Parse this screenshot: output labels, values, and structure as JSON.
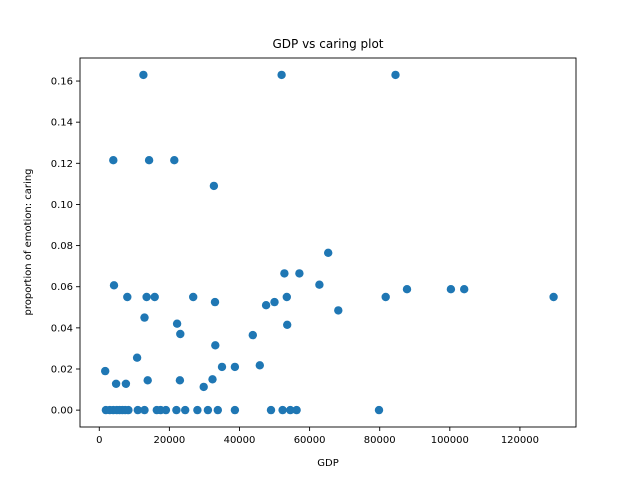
{
  "chart_data": {
    "type": "scatter",
    "title": "GDP vs caring plot",
    "xlabel": "GDP",
    "ylabel": "proportion of emotion: caring",
    "xlim": [
      -5500,
      136000
    ],
    "ylim": [
      -0.0082,
      0.1712
    ],
    "xticks": [
      0,
      20000,
      40000,
      60000,
      80000,
      100000,
      120000
    ],
    "xtick_labels": [
      "0",
      "20000",
      "40000",
      "60000",
      "80000",
      "100000",
      "120000"
    ],
    "yticks": [
      0.0,
      0.02,
      0.04,
      0.06,
      0.08,
      0.1,
      0.12,
      0.14,
      0.16
    ],
    "ytick_labels": [
      "0.00",
      "0.02",
      "0.04",
      "0.06",
      "0.08",
      "0.10",
      "0.12",
      "0.14",
      "0.16"
    ],
    "grid": false,
    "marker_color": "#1f77b4",
    "points": [
      [
        12600,
        0.163
      ],
      [
        52000,
        0.163
      ],
      [
        84500,
        0.163
      ],
      [
        4000,
        0.1215
      ],
      [
        14200,
        0.1215
      ],
      [
        21400,
        0.1215
      ],
      [
        32700,
        0.109
      ],
      [
        65300,
        0.0765
      ],
      [
        52800,
        0.0665
      ],
      [
        57100,
        0.0665
      ],
      [
        4200,
        0.0607
      ],
      [
        62800,
        0.061
      ],
      [
        87800,
        0.0588
      ],
      [
        100300,
        0.0588
      ],
      [
        104100,
        0.0588
      ],
      [
        8000,
        0.055
      ],
      [
        13500,
        0.055
      ],
      [
        15800,
        0.055
      ],
      [
        26800,
        0.055
      ],
      [
        53500,
        0.055
      ],
      [
        81700,
        0.055
      ],
      [
        129600,
        0.055
      ],
      [
        33000,
        0.0525
      ],
      [
        50000,
        0.0525
      ],
      [
        47600,
        0.051
      ],
      [
        68200,
        0.0485
      ],
      [
        12900,
        0.045
      ],
      [
        22200,
        0.042
      ],
      [
        53600,
        0.0415
      ],
      [
        23100,
        0.037
      ],
      [
        43800,
        0.0365
      ],
      [
        33100,
        0.0315
      ],
      [
        10800,
        0.0255
      ],
      [
        45800,
        0.0218
      ],
      [
        35000,
        0.021
      ],
      [
        38700,
        0.021
      ],
      [
        1700,
        0.019
      ],
      [
        13800,
        0.0145
      ],
      [
        23000,
        0.0145
      ],
      [
        32300,
        0.015
      ],
      [
        4800,
        0.0128
      ],
      [
        7600,
        0.0128
      ],
      [
        29800,
        0.0113
      ],
      [
        1900,
        0
      ],
      [
        3000,
        0
      ],
      [
        4000,
        0
      ],
      [
        5000,
        0
      ],
      [
        5800,
        0
      ],
      [
        6600,
        0
      ],
      [
        7400,
        0
      ],
      [
        8300,
        0
      ],
      [
        11000,
        0
      ],
      [
        12900,
        0
      ],
      [
        16400,
        0
      ],
      [
        17500,
        0
      ],
      [
        19000,
        0
      ],
      [
        22000,
        0
      ],
      [
        24500,
        0
      ],
      [
        28000,
        0
      ],
      [
        31000,
        0
      ],
      [
        33800,
        0
      ],
      [
        38700,
        0
      ],
      [
        49000,
        0
      ],
      [
        52300,
        0
      ],
      [
        54500,
        0
      ],
      [
        56300,
        0
      ],
      [
        79800,
        0
      ]
    ]
  }
}
